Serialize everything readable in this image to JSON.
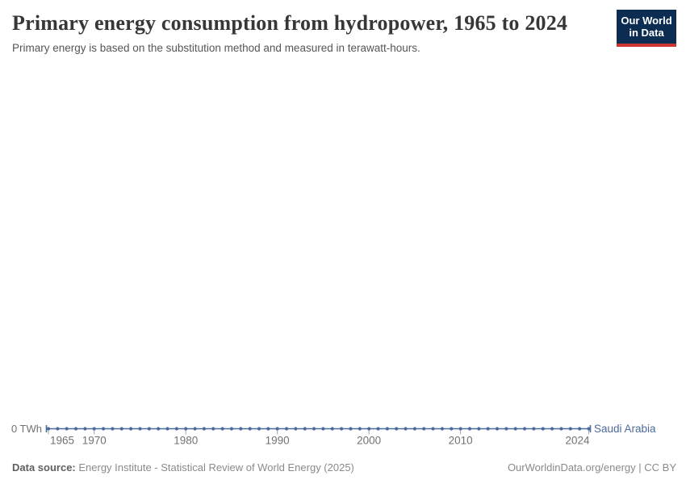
{
  "logo": {
    "line1": "Our World",
    "line2": "in Data",
    "bg_color": "#0C2C52",
    "bar_color": "#CB3430"
  },
  "footer": {
    "source_label": "Data source:",
    "source_text": " Energy Institute - Statistical Review of World Energy (2025)",
    "credit": "OurWorldinData.org/energy | CC BY"
  },
  "chart_data": {
    "type": "line",
    "title": "Primary energy consumption from hydropower, 1965 to 2024",
    "subtitle": "Primary energy is based on the substitution method and measured in terawatt-hours.",
    "unit": "TWh",
    "grid": false,
    "xlim": [
      1965,
      2024
    ],
    "ylim": [
      0,
      0
    ],
    "y_axis_zero_label": "0 TWh",
    "x_ticks": [
      1965,
      1970,
      1980,
      1990,
      2000,
      2010,
      2024
    ],
    "x": [
      1965,
      1966,
      1967,
      1968,
      1969,
      1970,
      1971,
      1972,
      1973,
      1974,
      1975,
      1976,
      1977,
      1978,
      1979,
      1980,
      1981,
      1982,
      1983,
      1984,
      1985,
      1986,
      1987,
      1988,
      1989,
      1990,
      1991,
      1992,
      1993,
      1994,
      1995,
      1996,
      1997,
      1998,
      1999,
      2000,
      2001,
      2002,
      2003,
      2004,
      2005,
      2006,
      2007,
      2008,
      2009,
      2010,
      2011,
      2012,
      2013,
      2014,
      2015,
      2016,
      2017,
      2018,
      2019,
      2020,
      2021,
      2022,
      2023,
      2024
    ],
    "series": [
      {
        "name": "Saudi Arabia",
        "color": "#4C6A9C",
        "values": [
          0,
          0,
          0,
          0,
          0,
          0,
          0,
          0,
          0,
          0,
          0,
          0,
          0,
          0,
          0,
          0,
          0,
          0,
          0,
          0,
          0,
          0,
          0,
          0,
          0,
          0,
          0,
          0,
          0,
          0,
          0,
          0,
          0,
          0,
          0,
          0,
          0,
          0,
          0,
          0,
          0,
          0,
          0,
          0,
          0,
          0,
          0,
          0,
          0,
          0,
          0,
          0,
          0,
          0,
          0,
          0,
          0,
          0,
          0,
          0
        ]
      }
    ],
    "axis_text_color": "#727272",
    "tick_color": "#a7a7a7"
  }
}
